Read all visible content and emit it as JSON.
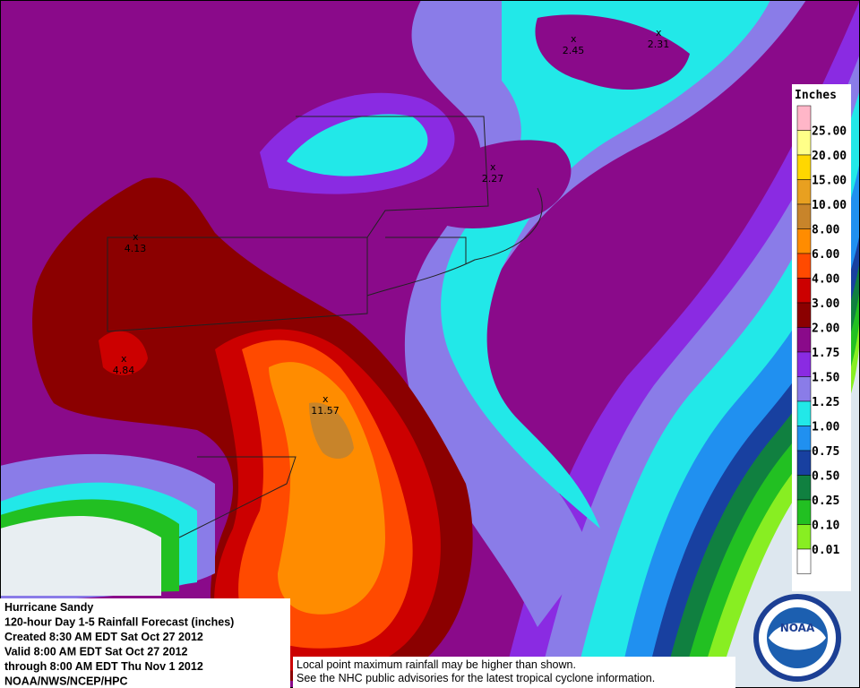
{
  "legend": {
    "title": "Inches",
    "items": [
      {
        "label": "25.00",
        "color": "#ffff88"
      },
      {
        "label": "20.00",
        "color": "#ffd700"
      },
      {
        "label": "15.00",
        "color": "#e8a020"
      },
      {
        "label": "10.00",
        "color": "#c8842a"
      },
      {
        "label": "8.00",
        "color": "#ff8c00"
      },
      {
        "label": "6.00",
        "color": "#ff4a00"
      },
      {
        "label": "4.00",
        "color": "#cc0000"
      },
      {
        "label": "3.00",
        "color": "#8b0000"
      },
      {
        "label": "2.00",
        "color": "#8a0a8a"
      },
      {
        "label": "1.75",
        "color": "#8a2be2"
      },
      {
        "label": "1.50",
        "color": "#8a7ce8"
      },
      {
        "label": "1.25",
        "color": "#22e8e8"
      },
      {
        "label": "1.00",
        "color": "#2090f0"
      },
      {
        "label": "0.75",
        "color": "#1840a0"
      },
      {
        "label": "0.50",
        "color": "#108040"
      },
      {
        "label": "0.25",
        "color": "#22c022"
      },
      {
        "label": "0.10",
        "color": "#88ee22"
      },
      {
        "label": "0.01",
        "color": "#ffffff"
      }
    ],
    "top_color": "#ffb6c8"
  },
  "points": [
    {
      "label": "2.45"
    },
    {
      "label": "2.31"
    },
    {
      "label": "2.27"
    },
    {
      "label": "4.13"
    },
    {
      "label": "4.84"
    },
    {
      "label": "11.57"
    }
  ],
  "info": {
    "lines": [
      "Hurricane Sandy",
      "120-hour Day 1-5 Rainfall Forecast (inches)",
      "Created 8:30 AM EDT Sat Oct 27 2012",
      "Valid 8:00 AM EDT Sat Oct 27 2012",
      "through 8:00 AM EDT Thu Nov 1 2012",
      "NOAA/NWS/NCEP/HPC"
    ]
  },
  "disclaimer": {
    "lines": [
      "Local point maximum rainfall may be higher than shown.",
      "See the NHC public advisories for the latest tropical cyclone information."
    ]
  },
  "logo": {
    "text": "NOAA"
  }
}
